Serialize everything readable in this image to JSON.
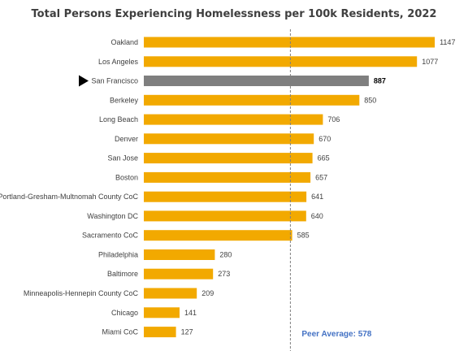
{
  "chart_data": {
    "type": "bar",
    "orientation": "horizontal",
    "title": "Total Persons Experiencing Homelessness per 100k Residents, 2022",
    "categories": [
      "Oakland",
      "Los Angeles",
      "San Francisco",
      "Berkeley",
      "Long Beach",
      "Denver",
      "San Jose",
      "Boston",
      "Portland-Gresham-Multnomah County CoC",
      "Washington DC",
      "Sacramento CoC",
      "Philadelphia",
      "Baltimore",
      "Minneapolis-Hennepin County CoC",
      "Chicago",
      "Miami  CoC"
    ],
    "values": [
      1147,
      1077,
      887,
      850,
      706,
      670,
      665,
      657,
      641,
      640,
      585,
      280,
      273,
      209,
      141,
      127
    ],
    "value_labels": [
      "1147",
      "1077",
      "887",
      "850",
      "706",
      "670",
      "665",
      "657",
      "641",
      "640",
      "585",
      "280",
      "273",
      "209",
      "141",
      "127"
    ],
    "highlight": "San Francisco",
    "reference_line": {
      "value": 578,
      "label": "Peer Average: 578"
    },
    "xlim": [
      0,
      1150
    ],
    "grid": false,
    "colors": {
      "bar": "#F2A900",
      "highlight_bar": "#7F7F7F",
      "reference_line": "#7F7F7F",
      "reference_label": "#4472C4",
      "marker": "#000000"
    }
  }
}
